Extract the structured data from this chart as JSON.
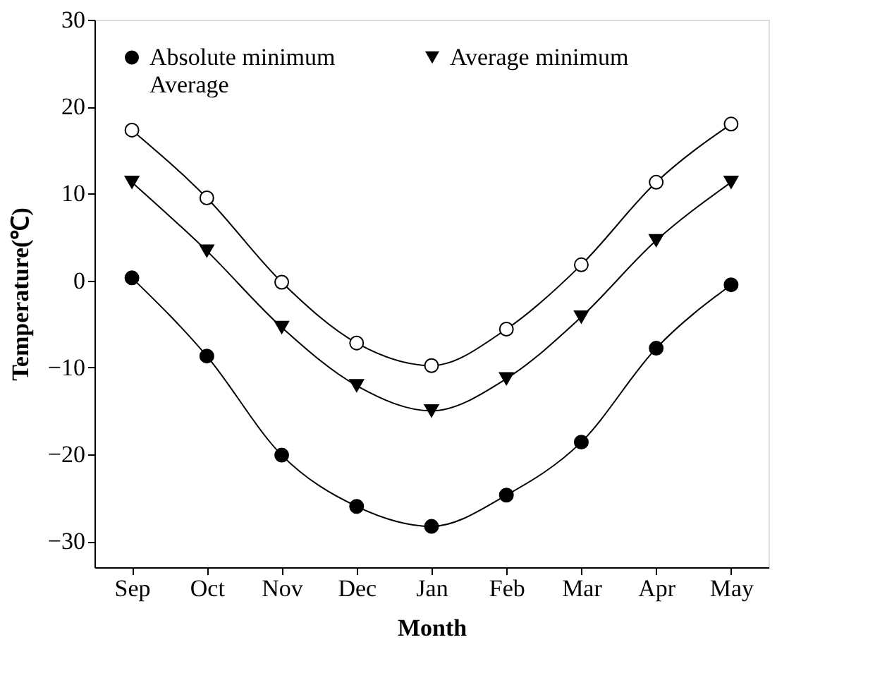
{
  "chart_data": {
    "type": "line",
    "xlabel": "Month",
    "ylabel": "Temperature(℃)",
    "categories": [
      "Sep",
      "Oct",
      "Nov",
      "Dec",
      "Jan",
      "Feb",
      "Mar",
      "Apr",
      "May"
    ],
    "series": [
      {
        "name": "Absolute minimum",
        "color": "#000000",
        "marker": "circle",
        "values": [
          0.3,
          -8.7,
          -20.1,
          -26,
          -28.3,
          -24.7,
          -18.6,
          -7.8,
          -0.5
        ]
      },
      {
        "name": "Average",
        "color": "#ffffff",
        "marker": "circle",
        "values": [
          17.3,
          9.5,
          -0.2,
          -7.2,
          -9.8,
          -5.6,
          1.8,
          11.3,
          18
        ]
      },
      {
        "name": "Average minimum",
        "color": "#000000",
        "marker": "triangle-down",
        "values": [
          11.3,
          3.4,
          -5.4,
          -12.1,
          -15,
          -11.3,
          -4.2,
          4.6,
          11.3
        ]
      }
    ],
    "ylim": [
      -33,
      30
    ],
    "yticks": [
      -30,
      -20,
      -10,
      0,
      10,
      20,
      30
    ],
    "grid": false,
    "legend": "top left",
    "line_style": "solid"
  }
}
